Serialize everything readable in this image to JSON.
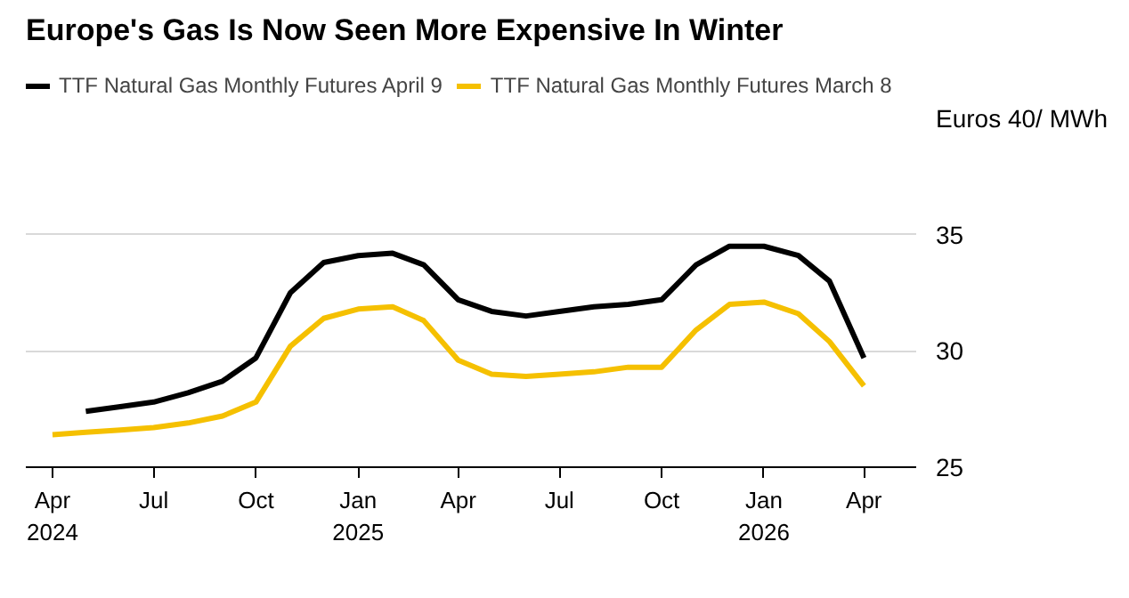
{
  "chart_data": {
    "type": "line",
    "title": "Europe's Gas Is Now Seen More Expensive In Winter",
    "x": [
      "2024-04",
      "2024-05",
      "2024-06",
      "2024-07",
      "2024-08",
      "2024-09",
      "2024-10",
      "2024-11",
      "2024-12",
      "2025-01",
      "2025-02",
      "2025-03",
      "2025-04",
      "2025-05",
      "2025-06",
      "2025-07",
      "2025-08",
      "2025-09",
      "2025-10",
      "2025-11",
      "2025-12",
      "2026-01",
      "2026-02",
      "2026-03",
      "2026-04"
    ],
    "series": [
      {
        "name": "TTF Natural Gas Monthly Futures April 9",
        "color": "#000000",
        "values": [
          null,
          27.4,
          27.6,
          27.8,
          28.2,
          28.7,
          29.7,
          32.5,
          33.8,
          34.1,
          34.2,
          33.7,
          32.2,
          31.7,
          31.5,
          31.7,
          31.9,
          32.0,
          32.2,
          33.7,
          34.5,
          34.5,
          34.1,
          33.0,
          29.7
        ]
      },
      {
        "name": "TTF Natural Gas Monthly Futures March 8",
        "color": "#f5c000",
        "values": [
          26.4,
          26.5,
          26.6,
          26.7,
          26.9,
          27.2,
          27.8,
          30.2,
          31.4,
          31.8,
          31.9,
          31.3,
          29.6,
          29.0,
          28.9,
          29.0,
          29.1,
          29.3,
          29.3,
          30.9,
          32.0,
          32.1,
          31.6,
          30.4,
          28.5
        ]
      }
    ],
    "xlim": [
      "2024-03-08",
      "2026-05-18"
    ],
    "xticks": [
      {
        "value": "2024-04",
        "label": "Apr\n2024"
      },
      {
        "value": "2024-07",
        "label": "Jul"
      },
      {
        "value": "2024-10",
        "label": "Oct"
      },
      {
        "value": "2025-01",
        "label": "Jan\n2025"
      },
      {
        "value": "2025-04",
        "label": "Apr"
      },
      {
        "value": "2025-07",
        "label": "Jul"
      },
      {
        "value": "2025-10",
        "label": "Oct"
      },
      {
        "value": "2026-01",
        "label": "Jan\n2026"
      },
      {
        "value": "2026-04",
        "label": "Apr"
      }
    ],
    "ylim": [
      25,
      40
    ],
    "yticks": [
      25,
      30,
      35,
      {
        "value": 40,
        "label": "Euros 40/ MWh"
      }
    ],
    "grid": "y",
    "legend": "top",
    "marker": "none",
    "line_style": "solid"
  }
}
